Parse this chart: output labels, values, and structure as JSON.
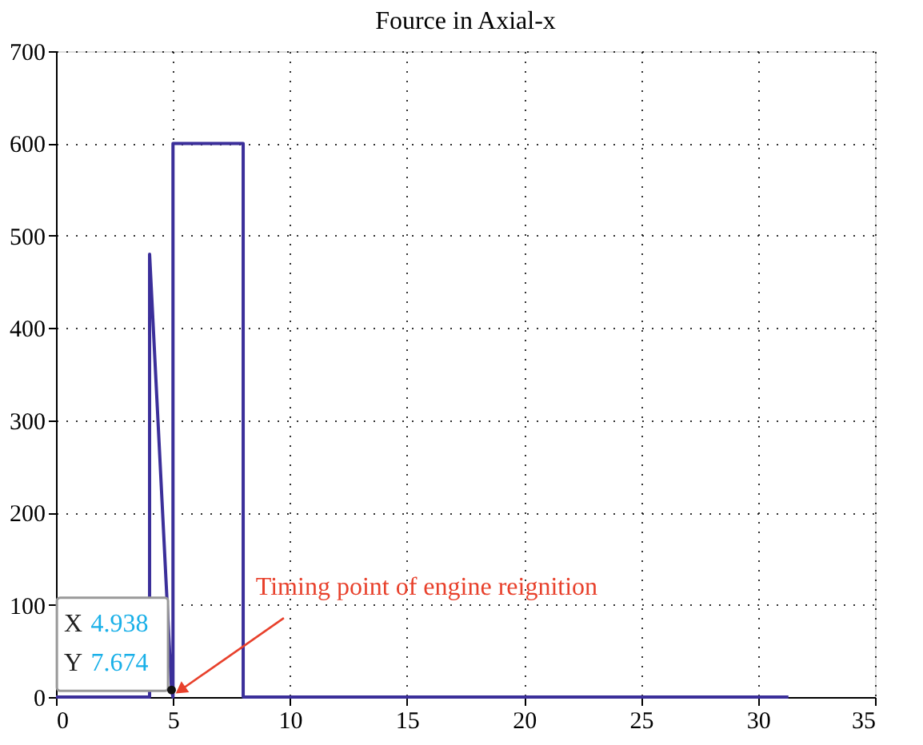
{
  "chart_data": {
    "type": "line",
    "title": "Fource in Axial-x",
    "x": [
      0,
      4,
      4,
      4.938,
      5,
      5,
      8,
      8,
      31.3
    ],
    "series": [
      {
        "color": "#3b2f9a",
        "values": [
          0,
          0,
          480,
          7.674,
          0,
          600,
          600,
          0,
          0
        ]
      }
    ],
    "xlim": [
      0,
      35
    ],
    "xticks": [
      0,
      5,
      10,
      15,
      20,
      25,
      30,
      35
    ],
    "ylim": [
      0,
      700
    ],
    "yticks": [
      0,
      100,
      200,
      300,
      400,
      500,
      600,
      700
    ],
    "grid": true,
    "marker": "none",
    "line_style": "solid",
    "annotations": [
      {
        "text": "Timing point of engine reignition",
        "x": 4.938,
        "y": 7.674
      },
      "X 4.938",
      "Y 7.674"
    ]
  }
}
